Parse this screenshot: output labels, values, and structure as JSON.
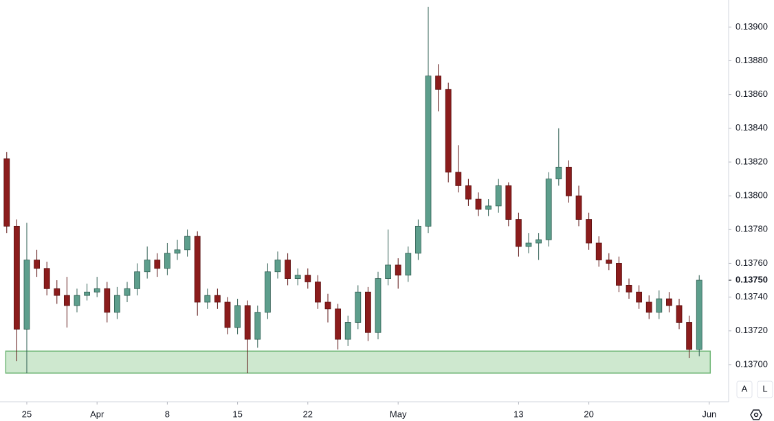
{
  "chart_data": {
    "type": "candlestick",
    "x": [
      23,
      24,
      25,
      26,
      27,
      28,
      29,
      30,
      31,
      32,
      33,
      34,
      35,
      36,
      37,
      38,
      39,
      40,
      41,
      42,
      43,
      44,
      45,
      46,
      47,
      48,
      49,
      50,
      51,
      52,
      53,
      54,
      55,
      56,
      57,
      58,
      59,
      60,
      61,
      62,
      63,
      64,
      65,
      66,
      67,
      68,
      69,
      70,
      71,
      72,
      73,
      74,
      75,
      76,
      77,
      78,
      79,
      80,
      81,
      82,
      83,
      84,
      85,
      86,
      87,
      88,
      89,
      90,
      91,
      92
    ],
    "open": [
      0.13822,
      0.13782,
      0.13721,
      0.13762,
      0.13757,
      0.13745,
      0.13741,
      0.13735,
      0.13741,
      0.13743,
      0.13745,
      0.13731,
      0.13741,
      0.13745,
      0.13755,
      0.13762,
      0.13757,
      0.13766,
      0.13768,
      0.13776,
      0.13737,
      0.13741,
      0.13737,
      0.13722,
      0.13735,
      0.13715,
      0.13731,
      0.13755,
      0.13762,
      0.13751,
      0.13753,
      0.13749,
      0.13737,
      0.13733,
      0.13715,
      0.13725,
      0.13743,
      0.13719,
      0.13751,
      0.13759,
      0.13753,
      0.13766,
      0.13782,
      0.13871,
      0.13863,
      0.13814,
      0.13806,
      0.13798,
      0.13792,
      0.13794,
      0.13806,
      0.13786,
      0.1377,
      0.13772,
      0.13774,
      0.1381,
      0.13817,
      0.138,
      0.13786,
      0.13772,
      0.13762,
      0.1376,
      0.13747,
      0.13743,
      0.13737,
      0.13731,
      0.13739,
      0.13735,
      0.13725,
      0.13709
    ],
    "high": [
      0.13826,
      0.13786,
      0.13784,
      0.13768,
      0.13761,
      0.1375,
      0.13752,
      0.13745,
      0.13748,
      0.13752,
      0.13749,
      0.13746,
      0.13749,
      0.1376,
      0.1377,
      0.13766,
      0.13772,
      0.13774,
      0.1378,
      0.13779,
      0.13745,
      0.13745,
      0.1374,
      0.13739,
      0.13738,
      0.13735,
      0.1376,
      0.13767,
      0.13766,
      0.13757,
      0.13757,
      0.13753,
      0.13742,
      0.13736,
      0.13729,
      0.13747,
      0.13746,
      0.13755,
      0.1378,
      0.13763,
      0.1377,
      0.13786,
      0.13912,
      0.13878,
      0.13867,
      0.1383,
      0.1381,
      0.13802,
      0.13798,
      0.1381,
      0.13808,
      0.1379,
      0.13778,
      0.13778,
      0.13814,
      0.1384,
      0.13821,
      0.13806,
      0.1379,
      0.13776,
      0.13766,
      0.13764,
      0.13751,
      0.13747,
      0.13741,
      0.13744,
      0.13743,
      0.13739,
      0.13729,
      0.13753
    ],
    "low": [
      0.13778,
      0.13702,
      0.13695,
      0.13752,
      0.13741,
      0.13736,
      0.13722,
      0.13731,
      0.13738,
      0.1374,
      0.13725,
      0.13727,
      0.13737,
      0.13741,
      0.13751,
      0.13752,
      0.13753,
      0.13762,
      0.13764,
      0.13729,
      0.13733,
      0.13733,
      0.13718,
      0.13718,
      0.13695,
      0.1371,
      0.13727,
      0.13751,
      0.13747,
      0.13747,
      0.13745,
      0.13733,
      0.13725,
      0.13709,
      0.13711,
      0.13721,
      0.13714,
      0.13715,
      0.13747,
      0.13745,
      0.13749,
      0.13762,
      0.13778,
      0.1385,
      0.13808,
      0.13802,
      0.13794,
      0.13788,
      0.13788,
      0.1379,
      0.13782,
      0.13764,
      0.13766,
      0.13762,
      0.1377,
      0.13806,
      0.13796,
      0.13782,
      0.13768,
      0.13758,
      0.13756,
      0.13743,
      0.13739,
      0.13733,
      0.13727,
      0.13727,
      0.13731,
      0.13721,
      0.13704,
      0.13705
    ],
    "close": [
      0.13782,
      0.13721,
      0.13762,
      0.13757,
      0.13745,
      0.13741,
      0.13735,
      0.13741,
      0.13743,
      0.13745,
      0.13731,
      0.13741,
      0.13745,
      0.13755,
      0.13762,
      0.13757,
      0.13766,
      0.13768,
      0.13776,
      0.13737,
      0.13741,
      0.13737,
      0.13722,
      0.13735,
      0.13715,
      0.13731,
      0.13755,
      0.13762,
      0.13751,
      0.13753,
      0.13749,
      0.13737,
      0.13733,
      0.13715,
      0.13725,
      0.13743,
      0.13719,
      0.13751,
      0.13759,
      0.13753,
      0.13766,
      0.13782,
      0.13871,
      0.13863,
      0.13814,
      0.13806,
      0.13798,
      0.13792,
      0.13794,
      0.13806,
      0.13786,
      0.1377,
      0.13772,
      0.13774,
      0.1381,
      0.13817,
      0.138,
      0.13786,
      0.13772,
      0.13762,
      0.1376,
      0.13747,
      0.13743,
      0.13737,
      0.13731,
      0.13739,
      0.13735,
      0.13725,
      0.13709,
      0.1375
    ],
    "up_color": "#5d9e8c",
    "down_color": "#8b1c1c",
    "xlim": [
      22.33,
      94.93
    ],
    "ylim": [
      0.13678,
      0.13916
    ],
    "xticks": [
      {
        "value": 25,
        "label": "25"
      },
      {
        "value": 32,
        "label": "Apr"
      },
      {
        "value": 39,
        "label": "8"
      },
      {
        "value": 46,
        "label": "15"
      },
      {
        "value": 53,
        "label": "22"
      },
      {
        "value": 62,
        "label": "May"
      },
      {
        "value": 74,
        "label": "13"
      },
      {
        "value": 81,
        "label": "20"
      },
      {
        "value": 93,
        "label": "Jun"
      }
    ],
    "yticks": [
      {
        "value": 0.137,
        "label": "0.13700"
      },
      {
        "value": 0.1372,
        "label": "0.13720"
      },
      {
        "value": 0.1374,
        "label": "0.13740"
      },
      {
        "value": 0.1376,
        "label": "0.13760"
      },
      {
        "value": 0.1378,
        "label": "0.13780"
      },
      {
        "value": 0.138,
        "label": "0.13800"
      },
      {
        "value": 0.1382,
        "label": "0.13820"
      },
      {
        "value": 0.1384,
        "label": "0.13840"
      },
      {
        "value": 0.1386,
        "label": "0.13860"
      },
      {
        "value": 0.1388,
        "label": "0.13880"
      },
      {
        "value": 0.139,
        "label": "0.13900"
      }
    ],
    "last_price": {
      "value": 0.1375,
      "label": "0.13750"
    },
    "zone": {
      "x": [
        22.9,
        93.1
      ],
      "y": [
        0.13695,
        0.13708
      ],
      "color": "#a5d6a7"
    }
  },
  "buttons": [
    "A",
    "L"
  ]
}
